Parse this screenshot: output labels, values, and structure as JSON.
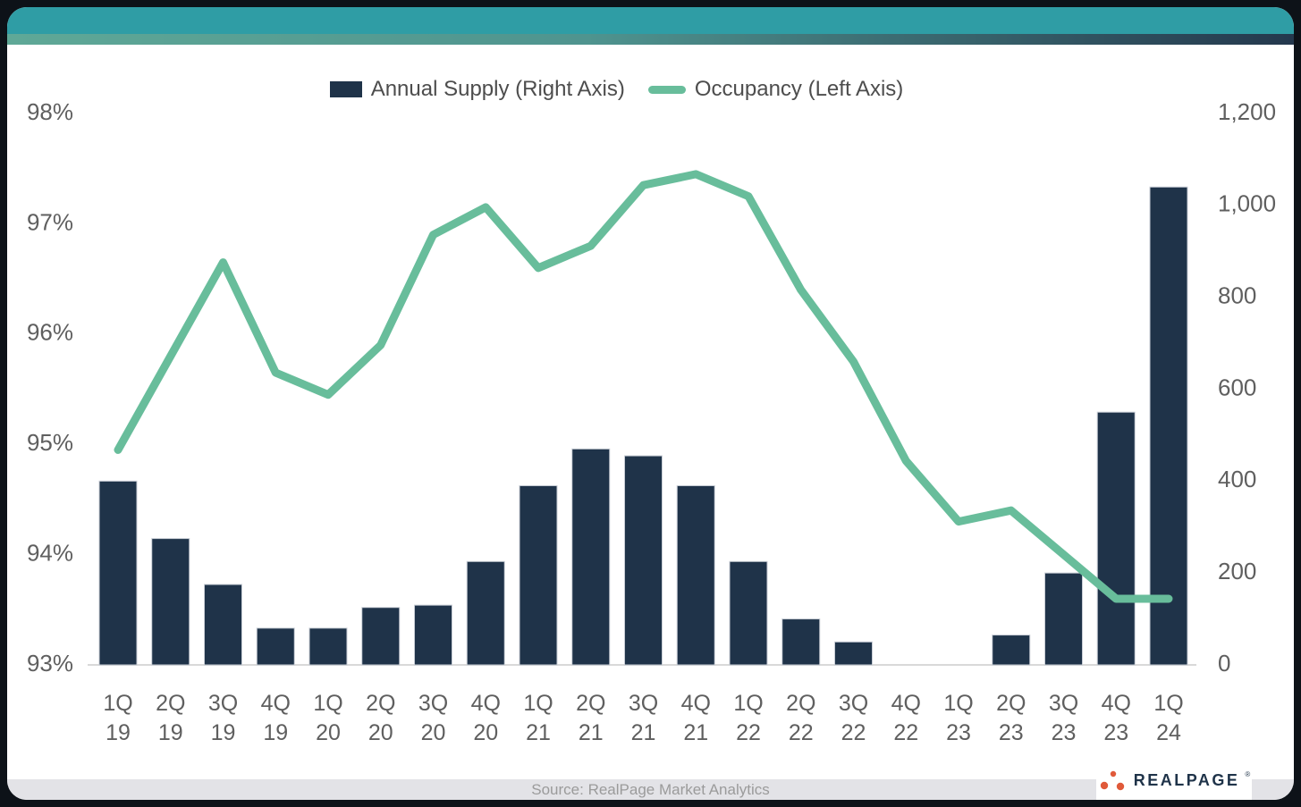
{
  "colors": {
    "header_teal": "#2F9DA5",
    "header_gradient_left": "#5FA897",
    "header_gradient_right": "#24384D",
    "bar": "#1F3349",
    "line": "#68BD9B",
    "axis_text": "#5F5F5F",
    "frame": "#0D1218",
    "source_bar_bg": "#E3E3E7",
    "source_text": "#9B9B9B",
    "logo_orange": "#E05A3A",
    "logo_navy": "#1F3349"
  },
  "legend": [
    {
      "label": "Annual Supply (Right Axis)",
      "swatch": "bar"
    },
    {
      "label": "Occupancy (Left Axis)",
      "swatch": "line"
    }
  ],
  "chart_data": {
    "type": "bar",
    "title": "",
    "categories": [
      "1Q 19",
      "2Q 19",
      "3Q 19",
      "4Q 19",
      "1Q 20",
      "2Q 20",
      "3Q 20",
      "4Q 20",
      "1Q 21",
      "2Q 21",
      "3Q 21",
      "4Q 21",
      "1Q 22",
      "2Q 22",
      "3Q 22",
      "4Q 22",
      "1Q 23",
      "2Q 23",
      "3Q 23",
      "4Q 23",
      "1Q 24"
    ],
    "series": [
      {
        "name": "Annual Supply (Right Axis)",
        "type": "bar",
        "axis": "right",
        "values": [
          400,
          275,
          175,
          80,
          80,
          125,
          130,
          225,
          390,
          470,
          455,
          390,
          225,
          100,
          50,
          0,
          0,
          65,
          200,
          550,
          1040
        ]
      },
      {
        "name": "Occupancy (Left Axis)",
        "type": "line",
        "axis": "left",
        "values": [
          94.95,
          95.8,
          96.65,
          95.65,
          95.45,
          95.9,
          96.9,
          97.15,
          96.6,
          96.8,
          97.35,
          97.45,
          97.25,
          96.4,
          95.75,
          94.85,
          94.3,
          94.4,
          94.0,
          93.6,
          93.6
        ]
      }
    ],
    "left_axis": {
      "unit": "%",
      "min": 93,
      "max": 98,
      "tick_values": [
        98,
        97,
        96,
        95,
        94,
        93
      ],
      "tick_labels": [
        "98%",
        "97%",
        "96%",
        "95%",
        "94%",
        "93%"
      ]
    },
    "right_axis": {
      "min": 0,
      "max": 1200,
      "tick_values": [
        1200,
        1000,
        800,
        600,
        400,
        200,
        0
      ],
      "tick_labels": [
        "1,200",
        "1,000",
        "800",
        "600",
        "400",
        "200",
        "0"
      ]
    },
    "grid": "off",
    "legend_position": "top-center"
  },
  "footer": {
    "source": "Source: RealPage Market Analytics",
    "logo_text": "REALPAGE",
    "logo_tm": "®"
  }
}
